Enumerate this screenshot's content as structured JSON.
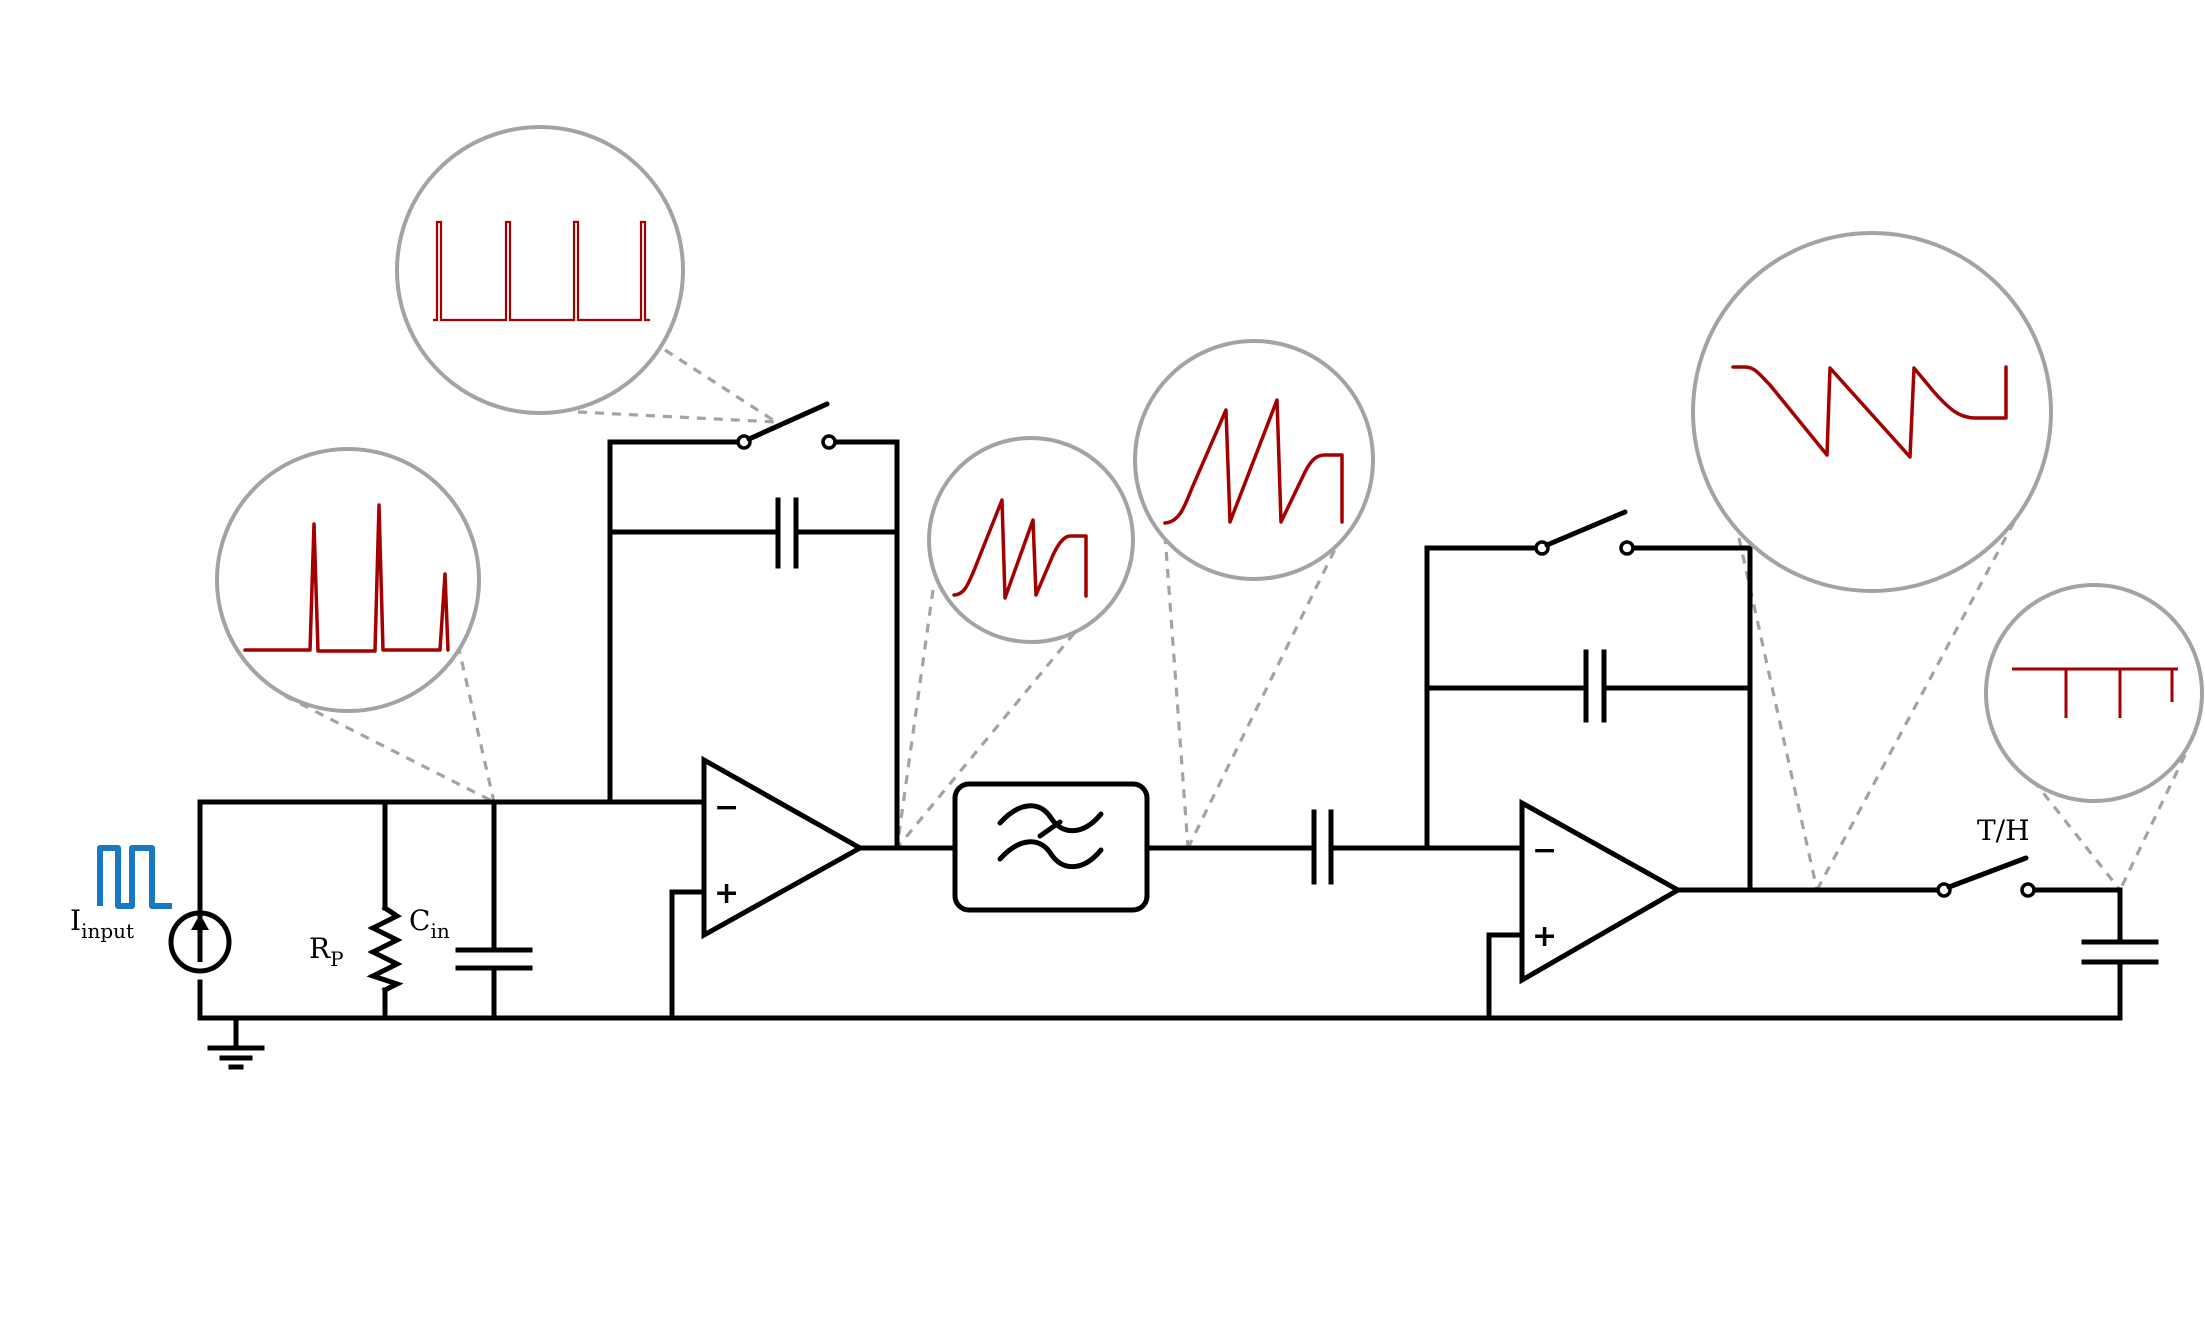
{
  "labels": {
    "input_main": "I",
    "input_sub": "input",
    "rp_main": "R",
    "rp_sub": "P",
    "cin_main": "C",
    "cin_sub": "in",
    "th": "T/H"
  },
  "opamp_signs": {
    "minus": "−",
    "plus": "+"
  },
  "colors": {
    "wire": "#000000",
    "trace": "#a30000",
    "input_pulse": "#1a78c2",
    "bubble": "#a3a3a3"
  }
}
